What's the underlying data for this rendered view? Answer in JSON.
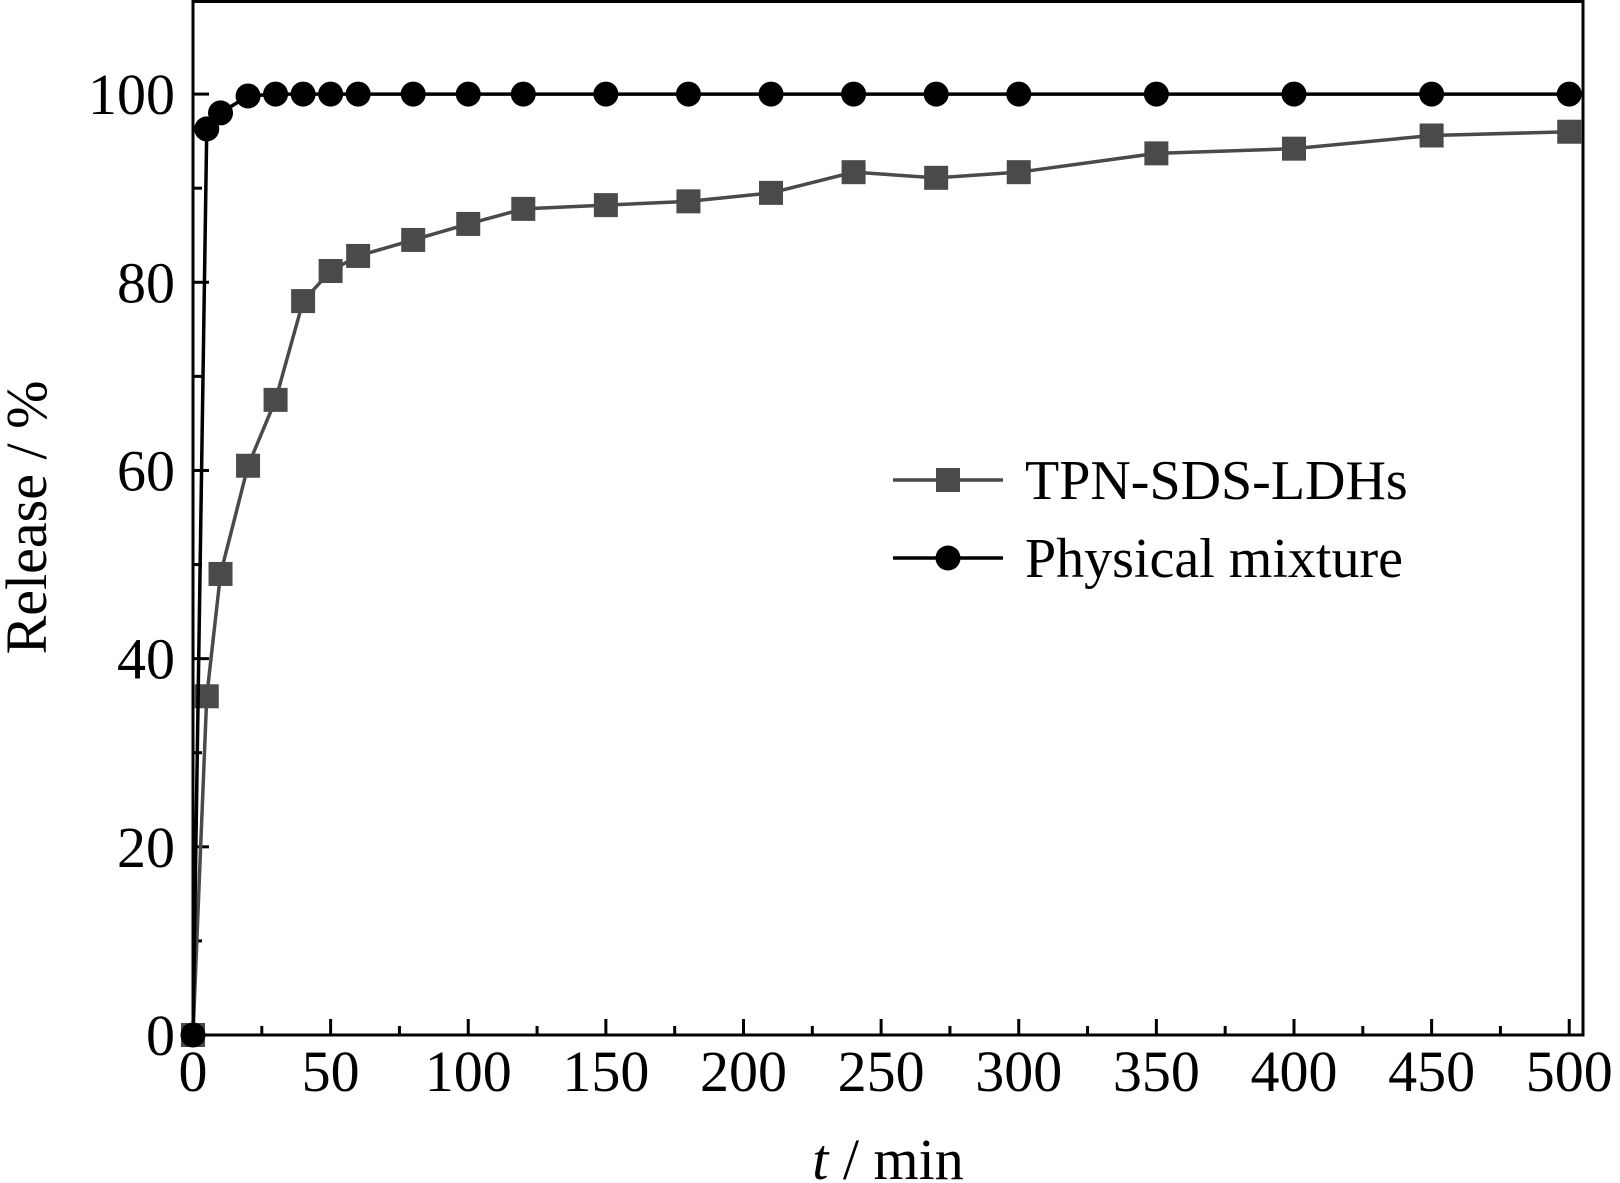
{
  "chart_data": {
    "type": "line",
    "xlabel_var": "t",
    "xlabel_unit": " / min",
    "ylabel": "Release / %",
    "xlim": [
      0,
      505
    ],
    "ylim": [
      0,
      110
    ],
    "xticks": [
      0,
      50,
      100,
      150,
      200,
      250,
      300,
      350,
      400,
      450,
      500
    ],
    "yticks": [
      0,
      20,
      40,
      60,
      80,
      100
    ],
    "x_minor_step": 25,
    "y_minor_step": 10,
    "legend_position": "center-right",
    "series": [
      {
        "name": "TPN-SDS-LDHs",
        "marker": "square",
        "color": "#4a4a4a",
        "x": [
          0,
          5,
          10,
          20,
          30,
          40,
          50,
          60,
          80,
          100,
          120,
          150,
          180,
          210,
          240,
          270,
          300,
          350,
          400,
          450,
          500
        ],
        "y": [
          0,
          36,
          49,
          60.5,
          67.5,
          78,
          81.2,
          82.8,
          84.5,
          86.2,
          87.8,
          88.2,
          88.6,
          89.5,
          91.7,
          91.1,
          91.7,
          93.7,
          94.2,
          95.6,
          96
        ]
      },
      {
        "name": "Physical mixture",
        "marker": "circle",
        "color": "#000000",
        "x": [
          0,
          5,
          10,
          20,
          30,
          40,
          50,
          60,
          80,
          100,
          120,
          150,
          180,
          210,
          240,
          270,
          300,
          350,
          400,
          450,
          500
        ],
        "y": [
          0,
          96.3,
          98,
          99.8,
          100,
          100,
          100,
          100,
          100,
          100,
          100,
          100,
          100,
          100,
          100,
          100,
          100,
          100,
          100,
          100,
          100
        ]
      }
    ]
  }
}
